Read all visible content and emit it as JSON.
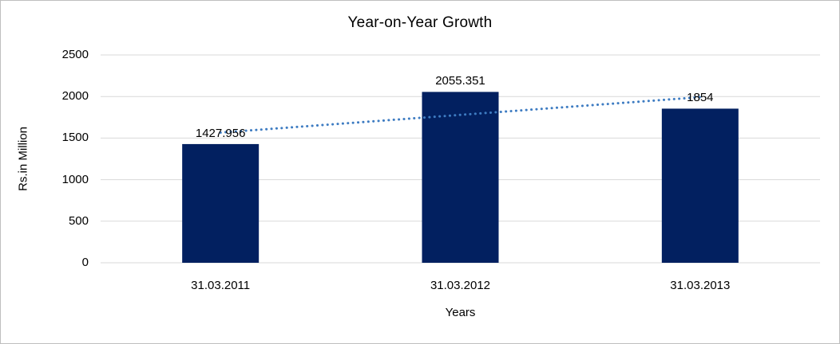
{
  "chart_data": {
    "type": "bar",
    "title": "Year-on-Year Growth",
    "xlabel": "Years",
    "ylabel": "Rs.in Million",
    "categories": [
      "31.03.2011",
      "31.03.2012",
      "31.03.2013"
    ],
    "values": [
      1427.956,
      2055.351,
      1854
    ],
    "value_labels": [
      "1427.956",
      "2055.351",
      "1854"
    ],
    "y_ticks": [
      0,
      500,
      1000,
      1500,
      2000,
      2500
    ],
    "y_tick_labels": [
      "0",
      "500",
      "1000",
      "1500",
      "2000",
      "2500"
    ],
    "ylim": [
      0,
      2500
    ],
    "grid": true,
    "legend": "none",
    "trendline": {
      "shape": "linear",
      "style": "dotted"
    },
    "colors": {
      "bar": "#022060",
      "gridline": "#d9d9d9",
      "trendline": "#3e7cc2",
      "text": "#000000",
      "frame_border": "#bfbfbf",
      "background": "#ffffff"
    }
  }
}
